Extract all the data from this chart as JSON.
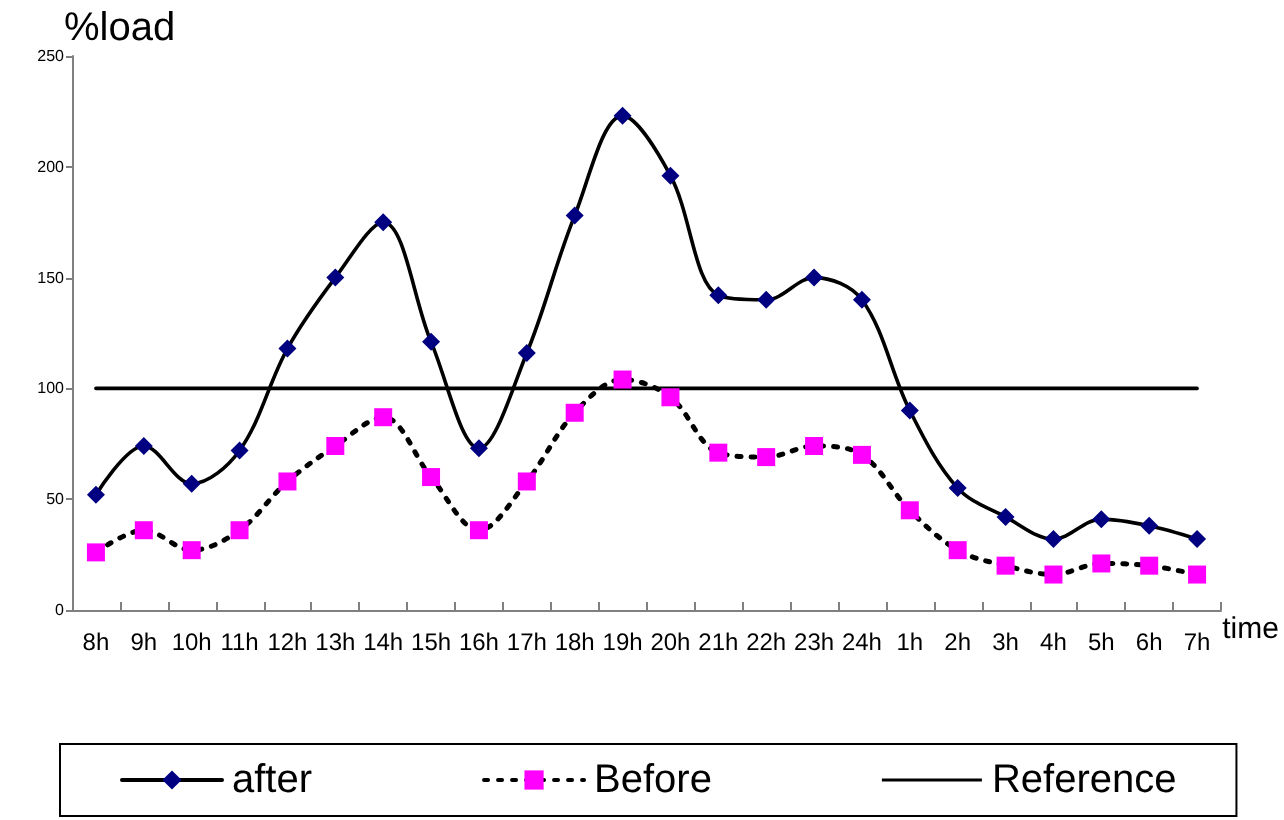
{
  "chart_data": {
    "type": "line",
    "ylabel": "%load",
    "xlabel": "time",
    "categories": [
      "8h",
      "9h",
      "10h",
      "11h",
      "12h",
      "13h",
      "14h",
      "15h",
      "16h",
      "17h",
      "18h",
      "19h",
      "20h",
      "21h",
      "22h",
      "23h",
      "24h",
      "1h",
      "2h",
      "3h",
      "4h",
      "5h",
      "6h",
      "7h"
    ],
    "series": [
      {
        "name": "after",
        "color": "#000080",
        "marker": "diamond",
        "line_style": "solid",
        "values": [
          52,
          74,
          57,
          72,
          118,
          150,
          175,
          121,
          73,
          116,
          178,
          223,
          196,
          142,
          140,
          150,
          140,
          90,
          55,
          42,
          32,
          41,
          38,
          32
        ]
      },
      {
        "name": "Before",
        "color": "#ff00ff",
        "marker": "square",
        "line_style": "dotted",
        "values": [
          26,
          36,
          27,
          36,
          58,
          74,
          87,
          60,
          36,
          58,
          89,
          104,
          96,
          71,
          69,
          74,
          70,
          45,
          27,
          20,
          16,
          21,
          20,
          16
        ]
      },
      {
        "name": "Reference",
        "color": "#000000",
        "marker": "none",
        "line_style": "solid",
        "values": [
          100,
          100,
          100,
          100,
          100,
          100,
          100,
          100,
          100,
          100,
          100,
          100,
          100,
          100,
          100,
          100,
          100,
          100,
          100,
          100,
          100,
          100,
          100,
          100
        ]
      }
    ],
    "ylim": [
      0,
      250
    ],
    "yticks": [
      0,
      50,
      100,
      150,
      200,
      250
    ],
    "grid": false,
    "legend": "bottom"
  }
}
